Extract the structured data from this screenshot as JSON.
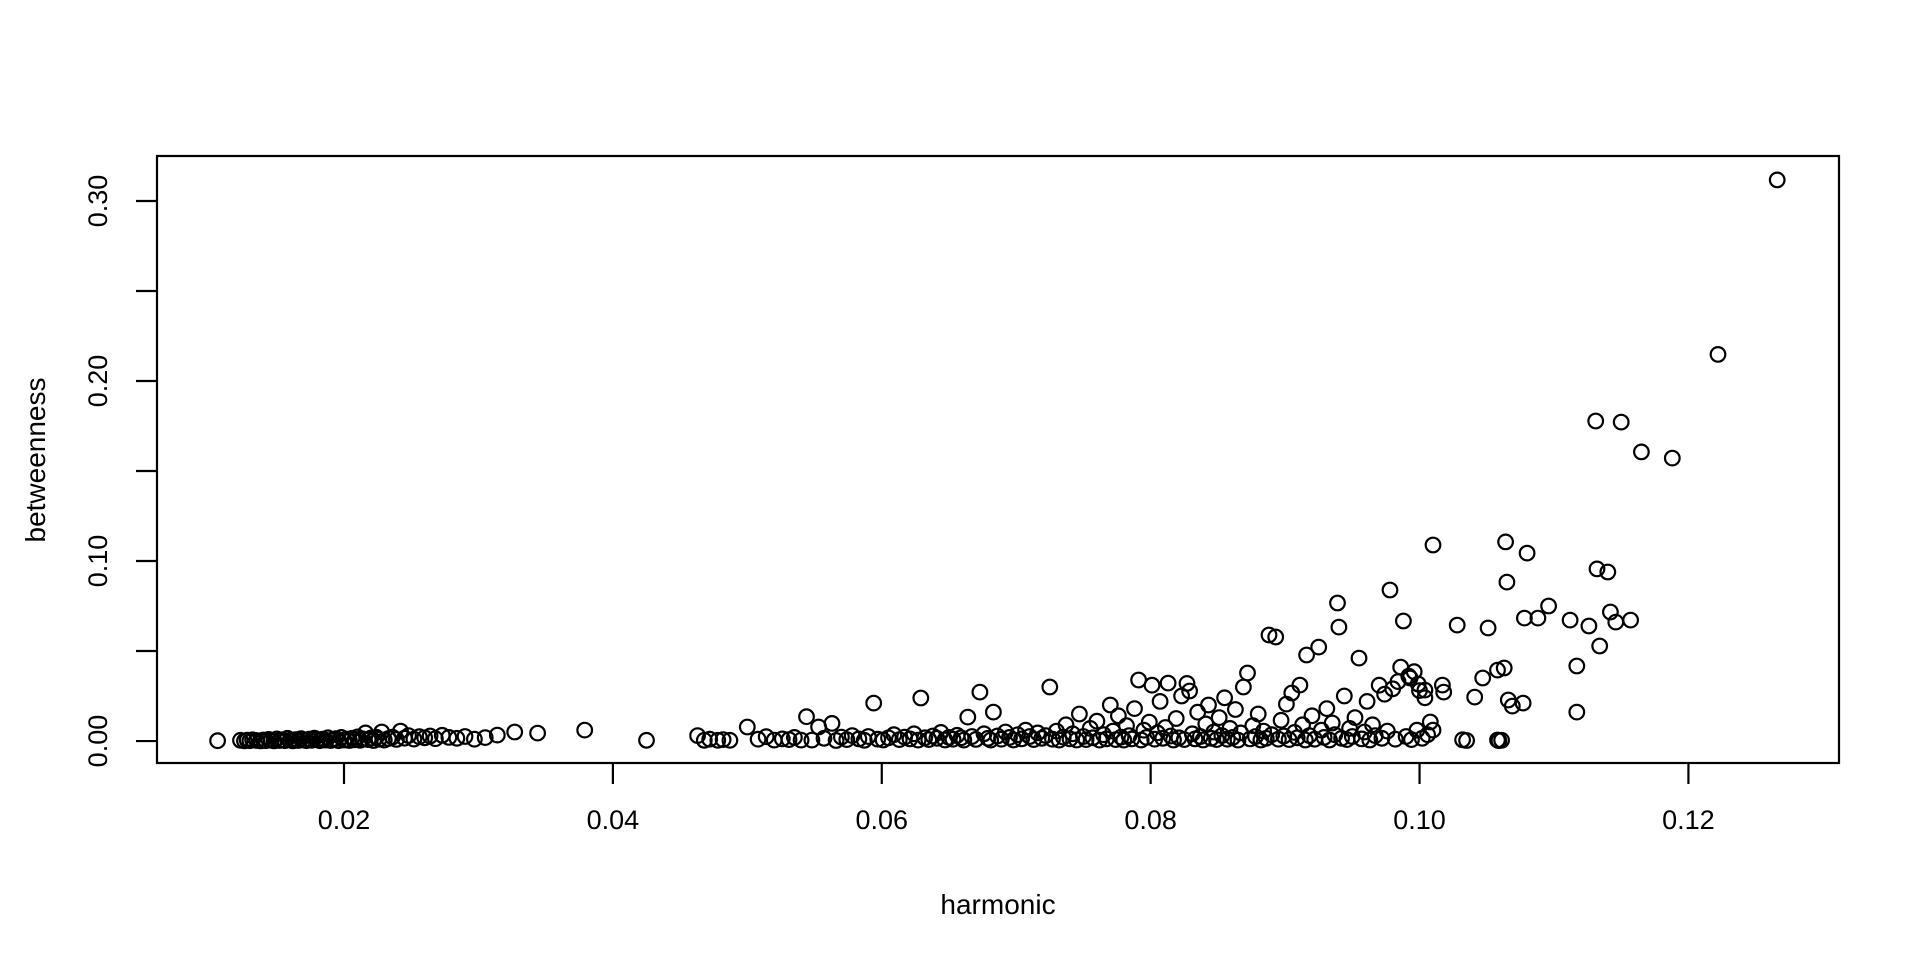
{
  "chart_data": {
    "type": "scatter",
    "title": "",
    "xlabel": "harmonic",
    "ylabel": "betweenness",
    "xlim": [
      0.00609,
      0.1312
    ],
    "ylim": [
      -0.0122,
      0.325
    ],
    "x_ticks": [
      0.02,
      0.04,
      0.06,
      0.08,
      0.1,
      0.12
    ],
    "x_tick_labels": [
      "0.02",
      "0.04",
      "0.06",
      "0.08",
      "0.10",
      "0.12"
    ],
    "y_ticks": [
      0.0,
      0.05,
      0.1,
      0.15,
      0.2,
      0.25,
      0.3
    ],
    "y_tick_labels": [
      "0.00",
      "",
      "0.10",
      "",
      "0.20",
      "",
      "0.30"
    ],
    "grid": false,
    "legend": "none",
    "marker": {
      "shape": "open-circle",
      "radius_px": 7.3,
      "stroke": "#000000",
      "stroke_width_px": 2.2,
      "fill": "none"
    },
    "frame_color": "#000000",
    "background": "#ffffff",
    "points": [
      [
        0.0106,
        0.0002
      ],
      [
        0.0123,
        0.0004
      ],
      [
        0.0126,
        0.0001
      ],
      [
        0.0128,
        0.0005
      ],
      [
        0.013,
        0.0002
      ],
      [
        0.0132,
        0.0007
      ],
      [
        0.0135,
        0.0003
      ],
      [
        0.0138,
        0.0001
      ],
      [
        0.014,
        0.0006
      ],
      [
        0.0142,
        0.0002
      ],
      [
        0.0144,
        0.0009
      ],
      [
        0.0146,
        0.0004
      ],
      [
        0.0148,
        0.0001
      ],
      [
        0.015,
        0.0012
      ],
      [
        0.0152,
        0.0003
      ],
      [
        0.0154,
        0.0007
      ],
      [
        0.0156,
        0.0002
      ],
      [
        0.0158,
        0.0015
      ],
      [
        0.016,
        0.0005
      ],
      [
        0.0162,
        0.0001
      ],
      [
        0.0164,
        0.0008
      ],
      [
        0.0166,
        0.0003
      ],
      [
        0.0168,
        0.0013
      ],
      [
        0.017,
        0.0006
      ],
      [
        0.0172,
        0.0002
      ],
      [
        0.0174,
        0.001
      ],
      [
        0.0176,
        0.0004
      ],
      [
        0.0178,
        0.0016
      ],
      [
        0.018,
        0.0007
      ],
      [
        0.0182,
        0.0002
      ],
      [
        0.0184,
        0.0011
      ],
      [
        0.0186,
        0.0005
      ],
      [
        0.0188,
        0.0018
      ],
      [
        0.019,
        0.0003
      ],
      [
        0.0192,
        0.0008
      ],
      [
        0.0194,
        0.0013
      ],
      [
        0.0196,
        0.0002
      ],
      [
        0.0198,
        0.002
      ],
      [
        0.02,
        0.0006
      ],
      [
        0.0202,
        0.001
      ],
      [
        0.0204,
        0.0003
      ],
      [
        0.0206,
        0.0015
      ],
      [
        0.0208,
        0.0007
      ],
      [
        0.021,
        0.0023
      ],
      [
        0.0212,
        0.0004
      ],
      [
        0.0214,
        0.0012
      ],
      [
        0.0216,
        0.0045
      ],
      [
        0.0218,
        0.0008
      ],
      [
        0.022,
        0.0017
      ],
      [
        0.0222,
        0.0003
      ],
      [
        0.0224,
        0.0021
      ],
      [
        0.0226,
        0.001
      ],
      [
        0.0228,
        0.005
      ],
      [
        0.023,
        0.0005
      ],
      [
        0.0233,
        0.0014
      ],
      [
        0.0236,
        0.0022
      ],
      [
        0.0239,
        0.0009
      ],
      [
        0.0242,
        0.0055
      ],
      [
        0.0245,
        0.0016
      ],
      [
        0.0248,
        0.003
      ],
      [
        0.0252,
        0.0011
      ],
      [
        0.0256,
        0.0024
      ],
      [
        0.026,
        0.0018
      ],
      [
        0.0264,
        0.0028
      ],
      [
        0.0268,
        0.0013
      ],
      [
        0.0273,
        0.0032
      ],
      [
        0.0278,
        0.002
      ],
      [
        0.0284,
        0.0015
      ],
      [
        0.029,
        0.0025
      ],
      [
        0.0297,
        0.001
      ],
      [
        0.0305,
        0.0019
      ],
      [
        0.0314,
        0.0033
      ],
      [
        0.0327,
        0.005
      ],
      [
        0.0344,
        0.0044
      ],
      [
        0.0379,
        0.0061
      ],
      [
        0.0425,
        0.0004
      ],
      [
        0.0463,
        0.003
      ],
      [
        0.0468,
        0.0004
      ],
      [
        0.0472,
        0.001
      ],
      [
        0.0478,
        0.0004
      ],
      [
        0.0482,
        0.0008
      ],
      [
        0.0487,
        0.0004
      ],
      [
        0.05,
        0.0078
      ],
      [
        0.0508,
        0.001
      ],
      [
        0.0514,
        0.0024
      ],
      [
        0.052,
        0.0005
      ],
      [
        0.0526,
        0.0012
      ],
      [
        0.0531,
        0.0008
      ],
      [
        0.0535,
        0.002
      ],
      [
        0.054,
        0.0005
      ],
      [
        0.0544,
        0.0135
      ],
      [
        0.0548,
        0.0005
      ],
      [
        0.0553,
        0.0078
      ],
      [
        0.0557,
        0.0015
      ],
      [
        0.0563,
        0.0098
      ],
      [
        0.0566,
        0.0003
      ],
      [
        0.057,
        0.0022
      ],
      [
        0.0574,
        0.0008
      ],
      [
        0.0578,
        0.003
      ],
      [
        0.0583,
        0.0012
      ],
      [
        0.0587,
        0.0004
      ],
      [
        0.059,
        0.0025
      ],
      [
        0.0594,
        0.0211
      ],
      [
        0.0597,
        0.001
      ],
      [
        0.0601,
        0.0006
      ],
      [
        0.0605,
        0.0018
      ],
      [
        0.0609,
        0.0035
      ],
      [
        0.0613,
        0.0008
      ],
      [
        0.0617,
        0.0022
      ],
      [
        0.0621,
        0.0012
      ],
      [
        0.0624,
        0.004
      ],
      [
        0.0627,
        0.0005
      ],
      [
        0.0629,
        0.0239
      ],
      [
        0.0632,
        0.0018
      ],
      [
        0.0635,
        0.0008
      ],
      [
        0.0638,
        0.0028
      ],
      [
        0.0641,
        0.0015
      ],
      [
        0.0644,
        0.0048
      ],
      [
        0.0647,
        0.0006
      ],
      [
        0.065,
        0.002
      ],
      [
        0.0653,
        0.001
      ],
      [
        0.0656,
        0.0032
      ],
      [
        0.0659,
        0.0018
      ],
      [
        0.0661,
        0.0005
      ],
      [
        0.0664,
        0.0133
      ],
      [
        0.0667,
        0.0025
      ],
      [
        0.067,
        0.0009
      ],
      [
        0.0673,
        0.0272
      ],
      [
        0.0676,
        0.004
      ],
      [
        0.0679,
        0.0015
      ],
      [
        0.0681,
        0.0005
      ],
      [
        0.0683,
        0.0161
      ],
      [
        0.0686,
        0.0028
      ],
      [
        0.0689,
        0.001
      ],
      [
        0.0692,
        0.005
      ],
      [
        0.0695,
        0.002
      ],
      [
        0.0698,
        0.0006
      ],
      [
        0.0701,
        0.0035
      ],
      [
        0.0704,
        0.0012
      ],
      [
        0.0707,
        0.006
      ],
      [
        0.071,
        0.0025
      ],
      [
        0.0713,
        0.0008
      ],
      [
        0.0716,
        0.0045
      ],
      [
        0.0719,
        0.0015
      ],
      [
        0.0722,
        0.003
      ],
      [
        0.0725,
        0.03
      ],
      [
        0.0727,
        0.001
      ],
      [
        0.073,
        0.0055
      ],
      [
        0.0732,
        0.0005
      ],
      [
        0.0735,
        0.0022
      ],
      [
        0.0737,
        0.009
      ],
      [
        0.074,
        0.0012
      ],
      [
        0.0742,
        0.004
      ],
      [
        0.0745,
        0.0006
      ],
      [
        0.0747,
        0.015
      ],
      [
        0.075,
        0.0025
      ],
      [
        0.0752,
        0.0008
      ],
      [
        0.0755,
        0.007
      ],
      [
        0.0757,
        0.0018
      ],
      [
        0.076,
        0.011
      ],
      [
        0.0762,
        0.0005
      ],
      [
        0.0765,
        0.0035
      ],
      [
        0.0767,
        0.0012
      ],
      [
        0.077,
        0.02
      ],
      [
        0.0772,
        0.0055
      ],
      [
        0.0774,
        0.0008
      ],
      [
        0.0776,
        0.014
      ],
      [
        0.0778,
        0.0022
      ],
      [
        0.078,
        0.0005
      ],
      [
        0.0782,
        0.0085
      ],
      [
        0.0784,
        0.003
      ],
      [
        0.0786,
        0.0012
      ],
      [
        0.0788,
        0.018
      ],
      [
        0.0791,
        0.0339
      ],
      [
        0.0793,
        0.0006
      ],
      [
        0.0795,
        0.006
      ],
      [
        0.0797,
        0.002
      ],
      [
        0.0799,
        0.0105
      ],
      [
        0.0801,
        0.031
      ],
      [
        0.0803,
        0.001
      ],
      [
        0.0805,
        0.0045
      ],
      [
        0.0807,
        0.022
      ],
      [
        0.0809,
        0.0015
      ],
      [
        0.0811,
        0.0075
      ],
      [
        0.0813,
        0.0322
      ],
      [
        0.0815,
        0.0028
      ],
      [
        0.0817,
        0.0006
      ],
      [
        0.0819,
        0.0125
      ],
      [
        0.0821,
        0.0018
      ],
      [
        0.0823,
        0.025
      ],
      [
        0.0825,
        0.0008
      ],
      [
        0.0827,
        0.032
      ],
      [
        0.0829,
        0.0278
      ],
      [
        0.0831,
        0.004
      ],
      [
        0.0833,
        0.0012
      ],
      [
        0.0835,
        0.016
      ],
      [
        0.0837,
        0.0025
      ],
      [
        0.0839,
        0.0006
      ],
      [
        0.0841,
        0.0095
      ],
      [
        0.0843,
        0.02
      ],
      [
        0.0845,
        0.0015
      ],
      [
        0.0847,
        0.005
      ],
      [
        0.0849,
        0.0008
      ],
      [
        0.0851,
        0.013
      ],
      [
        0.0853,
        0.003
      ],
      [
        0.0855,
        0.024
      ],
      [
        0.0857,
        0.001
      ],
      [
        0.0859,
        0.007
      ],
      [
        0.0861,
        0.002
      ],
      [
        0.0863,
        0.0175
      ],
      [
        0.0865,
        0.0005
      ],
      [
        0.0867,
        0.0045
      ],
      [
        0.0869,
        0.03
      ],
      [
        0.0872,
        0.0378
      ],
      [
        0.0874,
        0.0012
      ],
      [
        0.0876,
        0.0085
      ],
      [
        0.0878,
        0.0025
      ],
      [
        0.088,
        0.015
      ],
      [
        0.0882,
        0.0006
      ],
      [
        0.0884,
        0.0055
      ],
      [
        0.0886,
        0.0015
      ],
      [
        0.0888,
        0.0589
      ],
      [
        0.089,
        0.0035
      ],
      [
        0.0893,
        0.0578
      ],
      [
        0.0895,
        0.001
      ],
      [
        0.0897,
        0.0115
      ],
      [
        0.0899,
        0.0028
      ],
      [
        0.0901,
        0.0205
      ],
      [
        0.0903,
        0.0008
      ],
      [
        0.0905,
        0.0267
      ],
      [
        0.0907,
        0.0048
      ],
      [
        0.0909,
        0.0018
      ],
      [
        0.0911,
        0.0311
      ],
      [
        0.0913,
        0.009
      ],
      [
        0.0915,
        0.0006
      ],
      [
        0.0916,
        0.0478
      ],
      [
        0.0918,
        0.003
      ],
      [
        0.092,
        0.014
      ],
      [
        0.0922,
        0.001
      ],
      [
        0.0925,
        0.0522
      ],
      [
        0.0927,
        0.006
      ],
      [
        0.0929,
        0.002
      ],
      [
        0.0931,
        0.018
      ],
      [
        0.0933,
        0.0006
      ],
      [
        0.0935,
        0.01
      ],
      [
        0.0937,
        0.0035
      ],
      [
        0.0939,
        0.0767
      ],
      [
        0.094,
        0.0633
      ],
      [
        0.0942,
        0.0015
      ],
      [
        0.0944,
        0.025
      ],
      [
        0.0946,
        0.0008
      ],
      [
        0.0948,
        0.007
      ],
      [
        0.095,
        0.0025
      ],
      [
        0.0952,
        0.013
      ],
      [
        0.0955,
        0.0461
      ],
      [
        0.0957,
        0.0012
      ],
      [
        0.0959,
        0.005
      ],
      [
        0.0961,
        0.022
      ],
      [
        0.0963,
        0.0006
      ],
      [
        0.0965,
        0.009
      ],
      [
        0.0967,
        0.003
      ],
      [
        0.097,
        0.031
      ],
      [
        0.0972,
        0.0015
      ],
      [
        0.0974,
        0.026
      ],
      [
        0.0976,
        0.0055
      ],
      [
        0.0978,
        0.0839
      ],
      [
        0.098,
        0.029
      ],
      [
        0.0982,
        0.001
      ],
      [
        0.0984,
        0.033
      ],
      [
        0.0986,
        0.0411
      ],
      [
        0.0988,
        0.0667
      ],
      [
        0.099,
        0.0025
      ],
      [
        0.0992,
        0.036
      ],
      [
        0.0994,
        0.0008
      ],
      [
        0.0996,
        0.0385
      ],
      [
        0.0998,
        0.006
      ],
      [
        0.1,
        0.028
      ],
      [
        0.1002,
        0.0015
      ],
      [
        0.1004,
        0.024
      ],
      [
        0.1006,
        0.0035
      ],
      [
        0.0993,
        0.035
      ],
      [
        0.0999,
        0.0317
      ],
      [
        0.1004,
        0.0283
      ],
      [
        0.1008,
        0.0106
      ],
      [
        0.101,
        0.0061
      ],
      [
        0.101,
        0.1089
      ],
      [
        0.1017,
        0.0311
      ],
      [
        0.1018,
        0.0272
      ],
      [
        0.1028,
        0.0644
      ],
      [
        0.1032,
        0.0007
      ],
      [
        0.1035,
        0.0003
      ],
      [
        0.1041,
        0.0244
      ],
      [
        0.1047,
        0.035
      ],
      [
        0.1051,
        0.0628
      ],
      [
        0.1058,
        0.0394
      ],
      [
        0.1058,
        0.0006
      ],
      [
        0.1059,
        0.0002
      ],
      [
        0.1061,
        0.0004
      ],
      [
        0.1063,
        0.0406
      ],
      [
        0.1064,
        0.1106
      ],
      [
        0.1065,
        0.0883
      ],
      [
        0.1066,
        0.0228
      ],
      [
        0.1069,
        0.0194
      ],
      [
        0.1077,
        0.0211
      ],
      [
        0.1078,
        0.0683
      ],
      [
        0.108,
        0.1044
      ],
      [
        0.1088,
        0.0683
      ],
      [
        0.1096,
        0.075
      ],
      [
        0.1112,
        0.0672
      ],
      [
        0.1117,
        0.0417
      ],
      [
        0.1117,
        0.0161
      ],
      [
        0.1126,
        0.0639
      ],
      [
        0.1134,
        0.0528
      ],
      [
        0.1142,
        0.0717
      ],
      [
        0.1146,
        0.0661
      ],
      [
        0.1157,
        0.0672
      ],
      [
        0.1131,
        0.1778
      ],
      [
        0.115,
        0.1772
      ],
      [
        0.1165,
        0.1606
      ],
      [
        0.1188,
        0.1572
      ],
      [
        0.1132,
        0.0956
      ],
      [
        0.114,
        0.0939
      ],
      [
        0.1222,
        0.2148
      ],
      [
        0.1266,
        0.3117
      ]
    ]
  }
}
